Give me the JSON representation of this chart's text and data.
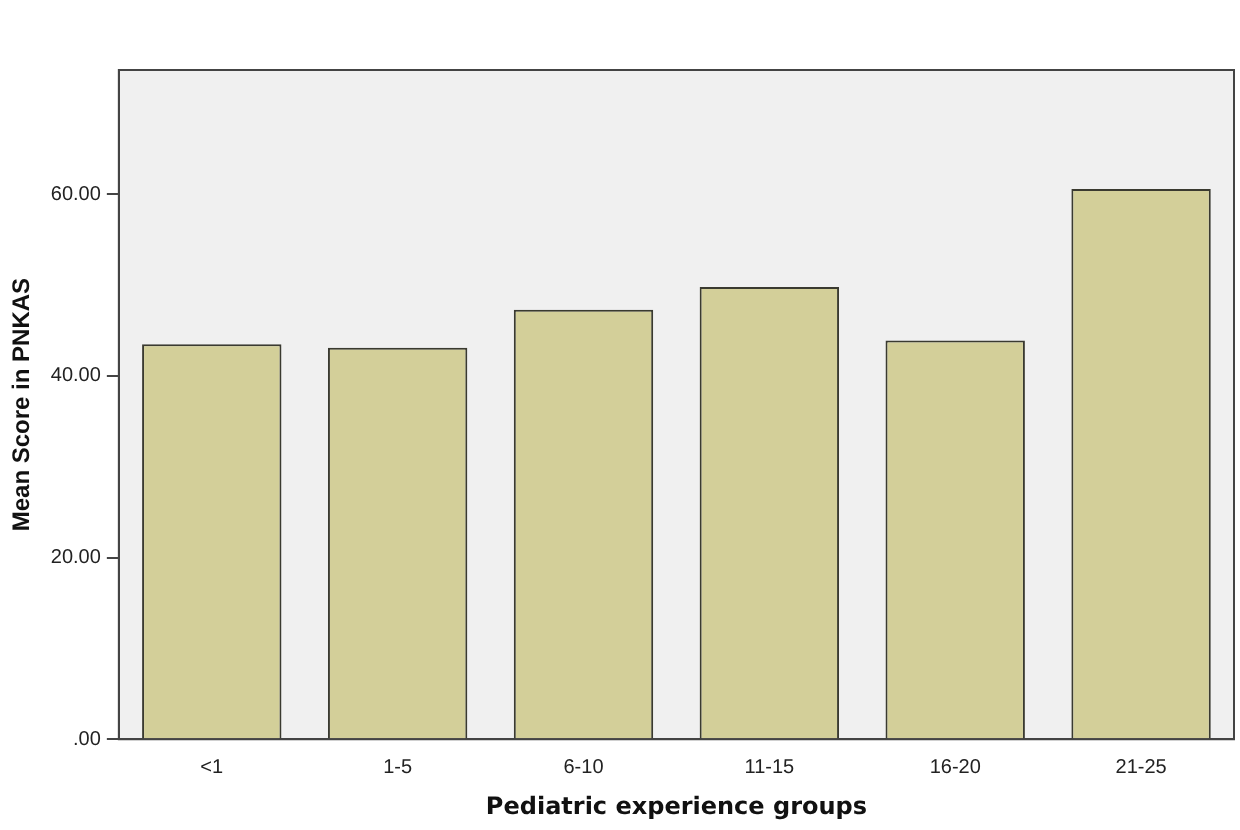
{
  "chart_data": {
    "type": "bar",
    "xlabel": "Pediatric experience groups",
    "ylabel": "Mean Score in PNKAS",
    "categories": [
      "<1",
      "1-5",
      "6-10",
      "11-15",
      "16-20",
      "21-25"
    ],
    "values": [
      43.5,
      43.1,
      47.3,
      49.8,
      43.9,
      60.6
    ],
    "color": "#d3cf99",
    "ylim": [
      0,
      73.7
    ],
    "yticks": [
      {
        "value": 0,
        "label": ".00"
      },
      {
        "value": 20,
        "label": "20.00"
      },
      {
        "value": 40,
        "label": "40.00"
      },
      {
        "value": 60,
        "label": "60.00"
      }
    ],
    "grid": false,
    "legend": false
  }
}
